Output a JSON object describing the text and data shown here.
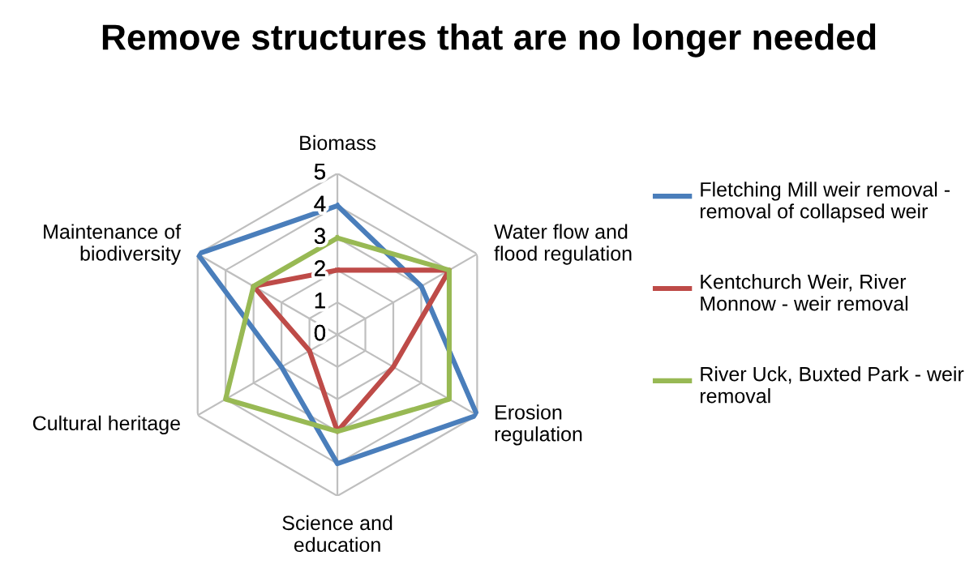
{
  "chart_data": {
    "type": "radar",
    "title": "Remove structures that are no longer needed",
    "categories": [
      "Biomass",
      "Water flow and\nflood regulation",
      "Erosion\nregulation",
      "Science and\neducation",
      "Cultural heritage",
      "Maintenance of\nbiodiversity"
    ],
    "series": [
      {
        "name": "Fletching Mill weir removal - removal of collapsed weir",
        "color": "#4a7ebb",
        "values": [
          4,
          3,
          5,
          4,
          2,
          5
        ]
      },
      {
        "name": "Kentchurch Weir, River Monnow - weir removal",
        "color": "#be4b48",
        "values": [
          2,
          4,
          2,
          3,
          1,
          3
        ]
      },
      {
        "name": "River Uck, Buxted Park - weir removal",
        "color": "#98b954",
        "values": [
          3,
          4,
          4,
          3,
          4,
          3
        ]
      }
    ],
    "ylim": [
      0,
      5
    ],
    "yticks": [
      0,
      1,
      2,
      3,
      4,
      5
    ],
    "grid": true,
    "legend": "right",
    "marker": "none",
    "line_style": "solid"
  }
}
